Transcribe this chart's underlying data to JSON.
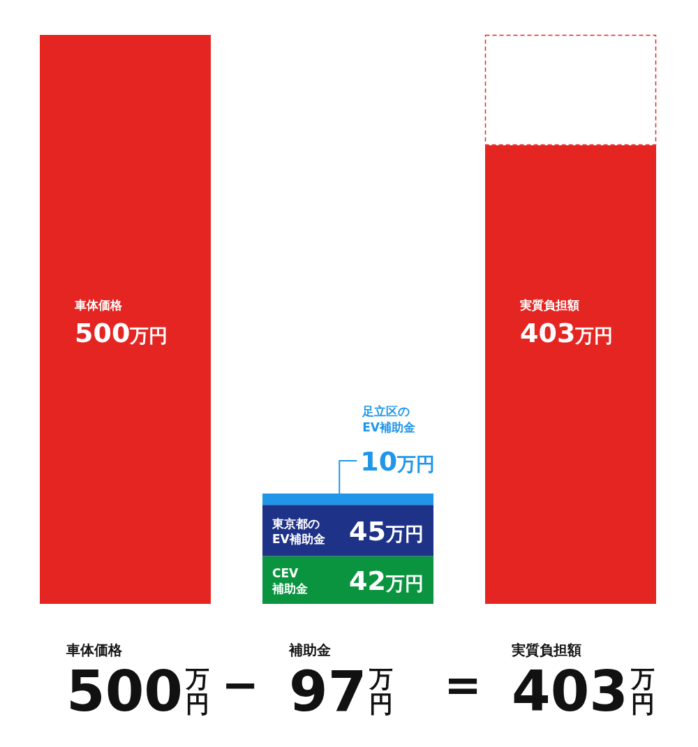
{
  "chart_data": {
    "type": "bar",
    "stacked": true,
    "categories": [
      "車体価格",
      "補助金",
      "実質負担額"
    ],
    "series": [
      {
        "name": "車体価格",
        "color": "#e52521",
        "values": [
          500,
          null,
          null
        ],
        "value_labels": [
          "500万円",
          null,
          null
        ]
      },
      {
        "name": "実質負担額",
        "color": "#e52521",
        "values": [
          null,
          null,
          403
        ],
        "value_labels": [
          null,
          null,
          "403万円"
        ]
      },
      {
        "name": "CEV\n補助金",
        "color": "#0a9440",
        "values": [
          null,
          42,
          null
        ],
        "value_labels": [
          null,
          "42万円",
          null
        ]
      },
      {
        "name": "東京都の\nEV補助金",
        "color": "#1e3287",
        "values": [
          null,
          45,
          null
        ],
        "value_labels": [
          null,
          "45万円",
          null
        ]
      },
      {
        "name": "足立区の\nEV補助金",
        "color": "#2196e8",
        "values": [
          null,
          10,
          null
        ],
        "value_labels": [
          null,
          "10万円",
          null
        ]
      },
      {
        "color": "#e52521",
        "values": [
          null,
          null,
          97
        ],
        "line_style": "dashed"
      }
    ],
    "annotations": [
      "500万円",
      "−",
      "97万円",
      "=",
      "403万円"
    ]
  }
}
